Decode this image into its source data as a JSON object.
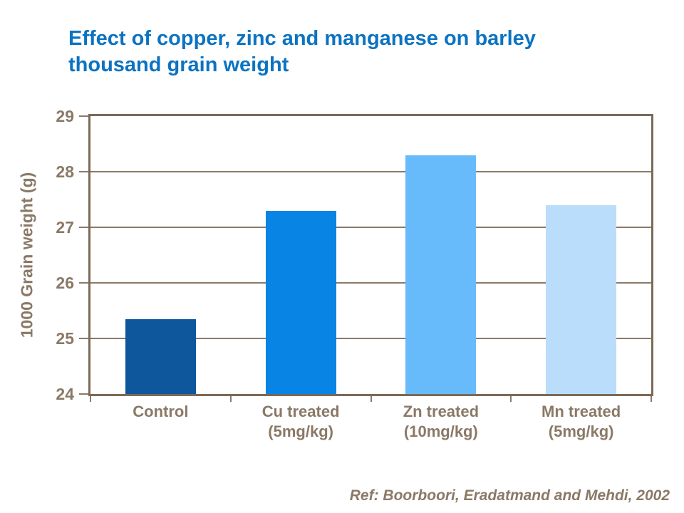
{
  "title": "Effect of copper, zinc and manganese on barley\nthousand grain weight",
  "reference": "Ref: Boorboori, Eradatmand and Mehdi, 2002",
  "colors": {
    "title": "#0c73c2",
    "axis_text": "#8a7966",
    "frame": "#7b6a57",
    "gridline": "#8a7a68",
    "background": "#ffffff"
  },
  "chart_data": {
    "type": "bar",
    "title": "Effect of copper, zinc and manganese on barley thousand grain weight",
    "categories": [
      "Control",
      "Cu treated\n(5mg/kg)",
      "Zn treated\n(10mg/kg)",
      "Mn treated\n(5mg/kg)"
    ],
    "values": [
      25.35,
      27.3,
      28.3,
      27.4
    ],
    "bar_colors": [
      "#0e579d",
      "#0784e4",
      "#68bbfb",
      "#b9ddfb"
    ],
    "xlabel": "",
    "ylabel": "1000 Grain weight (g)",
    "ylim": [
      24,
      29
    ],
    "yticks": [
      24,
      25,
      26,
      27,
      28,
      29
    ],
    "grid": true,
    "legend": false
  }
}
